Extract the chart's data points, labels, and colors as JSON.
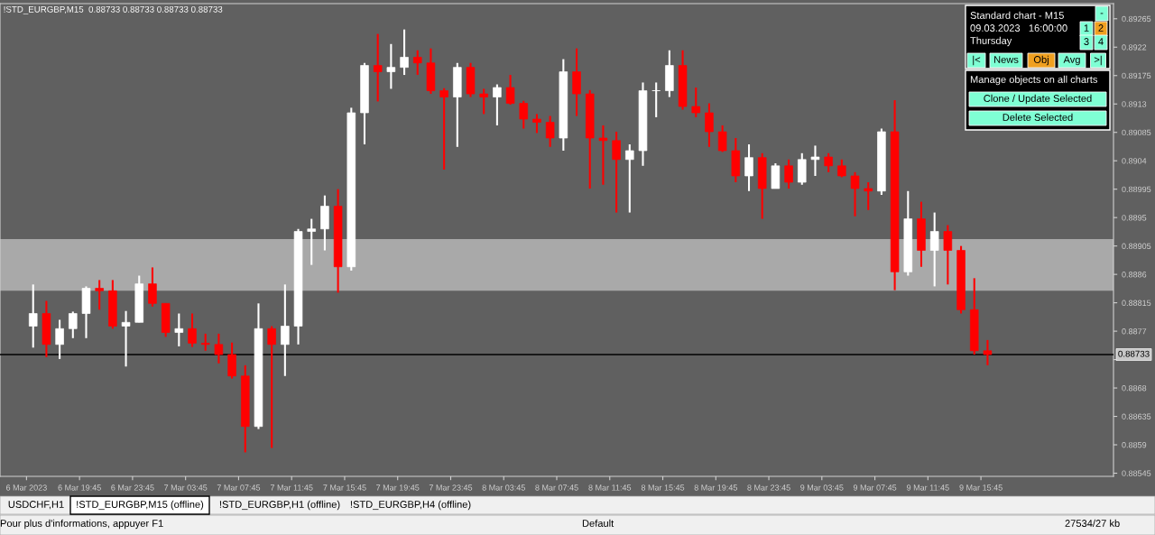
{
  "chart_data": {
    "type": "candlestick",
    "title": "!STD_EURGBP,M15  0.88733 0.88733 0.88733 0.88733",
    "x": [
      "2023-03-06T16:15",
      "2023-03-06T17:15",
      "2023-03-06T18:15",
      "2023-03-06T19:15",
      "2023-03-06T20:15",
      "2023-03-06T21:15",
      "2023-03-06T22:15",
      "2023-03-06T23:15",
      "2023-03-07T00:15",
      "2023-03-07T01:15",
      "2023-03-07T02:15",
      "2023-03-07T03:15",
      "2023-03-07T04:15",
      "2023-03-07T05:15",
      "2023-03-07T06:15",
      "2023-03-07T07:15",
      "2023-03-07T08:15",
      "2023-03-07T09:15",
      "2023-03-07T10:15",
      "2023-03-07T11:15",
      "2023-03-07T12:15",
      "2023-03-07T13:15",
      "2023-03-07T14:15",
      "2023-03-07T15:15",
      "2023-03-07T16:15",
      "2023-03-07T17:15",
      "2023-03-07T18:15",
      "2023-03-07T19:15",
      "2023-03-07T20:15",
      "2023-03-07T21:15",
      "2023-03-07T22:15",
      "2023-03-07T23:15",
      "2023-03-08T00:15",
      "2023-03-08T01:15",
      "2023-03-08T02:15",
      "2023-03-08T03:15",
      "2023-03-08T04:15",
      "2023-03-08T05:15",
      "2023-03-08T06:15",
      "2023-03-08T07:15",
      "2023-03-08T08:15",
      "2023-03-08T09:15",
      "2023-03-08T10:15",
      "2023-03-08T11:15",
      "2023-03-08T12:15",
      "2023-03-08T13:15",
      "2023-03-08T14:15",
      "2023-03-08T15:15",
      "2023-03-08T16:15",
      "2023-03-08T17:15",
      "2023-03-08T18:15",
      "2023-03-08T19:15",
      "2023-03-08T20:15",
      "2023-03-08T21:15",
      "2023-03-08T22:15",
      "2023-03-08T23:15",
      "2023-03-09T00:15",
      "2023-03-09T01:15",
      "2023-03-09T02:15",
      "2023-03-09T03:15",
      "2023-03-09T04:15",
      "2023-03-09T05:15",
      "2023-03-09T06:15",
      "2023-03-09T07:15",
      "2023-03-09T08:15",
      "2023-03-09T09:15",
      "2023-03-09T10:15",
      "2023-03-09T11:15",
      "2023-03-09T12:15",
      "2023-03-09T13:15",
      "2023-03-09T14:15",
      "2023-03-09T15:15",
      "2023-03-09T16:15"
    ],
    "ohlc": [
      [
        0.88778,
        0.88844,
        0.88744,
        0.88798
      ],
      [
        0.88798,
        0.88818,
        0.88729,
        0.88749
      ],
      [
        0.88749,
        0.88788,
        0.88726,
        0.88774
      ],
      [
        0.88774,
        0.88801,
        0.88759,
        0.88798
      ],
      [
        0.88798,
        0.88841,
        0.88759,
        0.88838
      ],
      [
        0.88838,
        0.88851,
        0.88804,
        0.88834
      ],
      [
        0.88834,
        0.88851,
        0.88774,
        0.88778
      ],
      [
        0.88778,
        0.88802,
        0.88714,
        0.88784
      ],
      [
        0.88784,
        0.88858,
        0.88784,
        0.88845
      ],
      [
        0.88845,
        0.88871,
        0.88809,
        0.88814
      ],
      [
        0.88814,
        0.88814,
        0.88761,
        0.88768
      ],
      [
        0.88768,
        0.88798,
        0.88746,
        0.88774
      ],
      [
        0.88774,
        0.88798,
        0.88745,
        0.88751
      ],
      [
        0.88751,
        0.88766,
        0.88739,
        0.88749
      ],
      [
        0.88749,
        0.88766,
        0.88719,
        0.88733
      ],
      [
        0.88733,
        0.88752,
        0.88695,
        0.88699
      ],
      [
        0.88699,
        0.88716,
        0.88578,
        0.88619
      ],
      [
        0.88619,
        0.88814,
        0.88615,
        0.88774
      ],
      [
        0.88774,
        0.88778,
        0.88585,
        0.88749
      ],
      [
        0.88749,
        0.88844,
        0.88699,
        0.88778
      ],
      [
        0.88778,
        0.88932,
        0.88749,
        0.88928
      ],
      [
        0.88928,
        0.88948,
        0.88875,
        0.88932
      ],
      [
        0.88932,
        0.88985,
        0.88898,
        0.88968
      ],
      [
        0.88968,
        0.88995,
        0.88831,
        0.88872
      ],
      [
        0.88872,
        0.89124,
        0.88866,
        0.89116
      ],
      [
        0.89116,
        0.89195,
        0.89066,
        0.89191
      ],
      [
        0.89191,
        0.89241,
        0.89134,
        0.89181
      ],
      [
        0.89181,
        0.89225,
        0.89154,
        0.89188
      ],
      [
        0.89188,
        0.89248,
        0.89176,
        0.89204
      ],
      [
        0.89204,
        0.89215,
        0.89176,
        0.89195
      ],
      [
        0.89195,
        0.89218,
        0.89146,
        0.89151
      ],
      [
        0.89151,
        0.89155,
        0.89026,
        0.89141
      ],
      [
        0.89141,
        0.89195,
        0.89062,
        0.89188
      ],
      [
        0.89188,
        0.89195,
        0.89141,
        0.89146
      ],
      [
        0.89146,
        0.89154,
        0.89114,
        0.89141
      ],
      [
        0.89141,
        0.89161,
        0.89096,
        0.89156
      ],
      [
        0.89156,
        0.89176,
        0.89129,
        0.89131
      ],
      [
        0.89131,
        0.89135,
        0.89091,
        0.89106
      ],
      [
        0.89106,
        0.89114,
        0.89084,
        0.89101
      ],
      [
        0.89101,
        0.89111,
        0.89062,
        0.89076
      ],
      [
        0.89076,
        0.89201,
        0.89056,
        0.89181
      ],
      [
        0.89181,
        0.89218,
        0.89111,
        0.89146
      ],
      [
        0.89146,
        0.89152,
        0.88996,
        0.89076
      ],
      [
        0.89076,
        0.89096,
        0.89002,
        0.89072
      ],
      [
        0.89072,
        0.89086,
        0.88958,
        0.89042
      ],
      [
        0.89042,
        0.89066,
        0.88958,
        0.89056
      ],
      [
        0.89056,
        0.89164,
        0.89032,
        0.89151
      ],
      [
        0.89151,
        0.89164,
        0.89109,
        0.89151
      ],
      [
        0.89151,
        0.89215,
        0.89141,
        0.89191
      ],
      [
        0.89191,
        0.89215,
        0.89121,
        0.89126
      ],
      [
        0.89126,
        0.89156,
        0.89109,
        0.89116
      ],
      [
        0.89116,
        0.89131,
        0.89062,
        0.89086
      ],
      [
        0.89086,
        0.89096,
        0.89054,
        0.89056
      ],
      [
        0.89056,
        0.89076,
        0.89006,
        0.89016
      ],
      [
        0.89016,
        0.89066,
        0.88992,
        0.89045
      ],
      [
        0.89045,
        0.89052,
        0.88948,
        0.88996
      ],
      [
        0.88996,
        0.89036,
        0.88996,
        0.89032
      ],
      [
        0.89032,
        0.89042,
        0.88996,
        0.89006
      ],
      [
        0.89006,
        0.89052,
        0.89002,
        0.89042
      ],
      [
        0.89042,
        0.89064,
        0.89016,
        0.89046
      ],
      [
        0.89046,
        0.89052,
        0.89022,
        0.89032
      ],
      [
        0.89032,
        0.89042,
        0.89014,
        0.89016
      ],
      [
        0.89016,
        0.89022,
        0.88952,
        0.88996
      ],
      [
        0.88996,
        0.89006,
        0.88962,
        0.88992
      ],
      [
        0.88992,
        0.89091,
        0.88986,
        0.89086
      ],
      [
        0.89086,
        0.89136,
        0.88835,
        0.88864
      ],
      [
        0.88864,
        0.88992,
        0.88858,
        0.88948
      ],
      [
        0.88948,
        0.88975,
        0.88872,
        0.88898
      ],
      [
        0.88898,
        0.88958,
        0.88841,
        0.88928
      ],
      [
        0.88928,
        0.88938,
        0.88844,
        0.88898
      ],
      [
        0.88898,
        0.88905,
        0.88798,
        0.88804
      ],
      [
        0.88804,
        0.88854,
        0.88733,
        0.88739
      ],
      [
        0.88739,
        0.88756,
        0.88716,
        0.88733
      ]
    ],
    "colors": [
      "#ffffff",
      "#ff0000",
      "#ffffff",
      "#ffffff",
      "#ffffff",
      "#ff0000",
      "#ff0000",
      "#ffffff",
      "#ffffff",
      "#ff0000",
      "#ff0000",
      "#ffffff",
      "#ff0000",
      "#ff0000",
      "#ff0000",
      "#ff0000",
      "#ff0000",
      "#ffffff",
      "#ff0000",
      "#ffffff",
      "#ffffff",
      "#ffffff",
      "#ffffff",
      "#ff0000",
      "#ffffff",
      "#ffffff",
      "#ff0000",
      "#ffffff",
      "#ffffff",
      "#ff0000",
      "#ff0000",
      "#ff0000",
      "#ffffff",
      "#ff0000",
      "#ff0000",
      "#ffffff",
      "#ff0000",
      "#ff0000",
      "#ff0000",
      "#ff0000",
      "#ffffff",
      "#ff0000",
      "#ff0000",
      "#ff0000",
      "#ff0000",
      "#ffffff",
      "#ffffff",
      "#ffffff",
      "#ffffff",
      "#ff0000",
      "#ff0000",
      "#ff0000",
      "#ff0000",
      "#ff0000",
      "#ffffff",
      "#ff0000",
      "#ffffff",
      "#ff0000",
      "#ffffff",
      "#ffffff",
      "#ff0000",
      "#ff0000",
      "#ff0000",
      "#ff0000",
      "#ffffff",
      "#ff0000",
      "#ffffff",
      "#ff0000",
      "#ffffff",
      "#ff0000",
      "#ff0000",
      "#ff0000",
      "#ff0000"
    ],
    "xlim": [
      "2023-03-06T13:45",
      "2023-03-10T01:45"
    ],
    "xticks": [
      {
        "value": "2023-03-06T15:45",
        "label": "6 Mar 2023"
      },
      {
        "value": "2023-03-06T19:45",
        "label": "6 Mar 19:45"
      },
      {
        "value": "2023-03-06T23:45",
        "label": "6 Mar 23:45"
      },
      {
        "value": "2023-03-07T03:45",
        "label": "7 Mar 03:45"
      },
      {
        "value": "2023-03-07T07:45",
        "label": "7 Mar 07:45"
      },
      {
        "value": "2023-03-07T11:45",
        "label": "7 Mar 11:45"
      },
      {
        "value": "2023-03-07T15:45",
        "label": "7 Mar 15:45"
      },
      {
        "value": "2023-03-07T19:45",
        "label": "7 Mar 19:45"
      },
      {
        "value": "2023-03-07T23:45",
        "label": "7 Mar 23:45"
      },
      {
        "value": "2023-03-08T03:45",
        "label": "8 Mar 03:45"
      },
      {
        "value": "2023-03-08T07:45",
        "label": "8 Mar 07:45"
      },
      {
        "value": "2023-03-08T11:45",
        "label": "8 Mar 11:45"
      },
      {
        "value": "2023-03-08T15:45",
        "label": "8 Mar 15:45"
      },
      {
        "value": "2023-03-08T19:45",
        "label": "8 Mar 19:45"
      },
      {
        "value": "2023-03-08T23:45",
        "label": "8 Mar 23:45"
      },
      {
        "value": "2023-03-09T03:45",
        "label": "9 Mar 03:45"
      },
      {
        "value": "2023-03-09T07:45",
        "label": "9 Mar 07:45"
      },
      {
        "value": "2023-03-09T11:45",
        "label": "9 Mar 11:45"
      },
      {
        "value": "2023-03-09T15:45",
        "label": "9 Mar 15:45"
      }
    ],
    "ylim": [
      0.8854,
      0.89289
    ],
    "yticks": [
      0.88545,
      0.8859,
      0.88635,
      0.8868,
      {
        "value": 0.88725,
        "label": null
      },
      0.8877,
      0.88815,
      0.8886,
      0.88905,
      0.8895,
      0.88995,
      0.8904,
      0.89085,
      0.8913,
      0.89175,
      0.8922,
      0.89265
    ],
    "ref_lines": [
      {
        "axis": "y",
        "value": 0.88733,
        "label": "0.88733",
        "color": "#000000"
      }
    ],
    "bands": [
      {
        "axis": "y",
        "from": 0.88834,
        "to": 0.88916,
        "color": "#a9a9a9"
      }
    ],
    "annotations": [
      "Standard chart - M15",
      "09.03.2023   16:00:00",
      "Thursday",
      "-",
      "1",
      "2",
      "3",
      "4",
      "|<",
      "News",
      "Obj",
      "Avg",
      ">|",
      "Manage objects on all charts",
      "Clone / Update Selected",
      "Delete Selected",
      "USDCHF,H1",
      "!STD_EURGBP,M15 (offline)",
      "!STD_EURGBP,H1 (offline)",
      "!STD_EURGBP,H4 (offline)",
      "Pour plus d'informations, appuyer F1",
      "Default",
      "27534/27 kb"
    ]
  }
}
